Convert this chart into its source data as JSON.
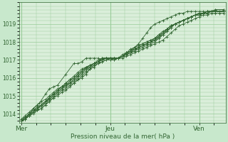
{
  "xlabel": "Pression niveau de la mer( hPa )",
  "bg_color": "#c8e8cc",
  "plot_bg_color": "#daeeda",
  "line_color": "#336633",
  "grid_color": "#99cc99",
  "tick_label_color": "#336633",
  "ylim": [
    1013.5,
    1020.2
  ],
  "yticks": [
    1014,
    1015,
    1016,
    1017,
    1018,
    1019
  ],
  "xtick_labels": [
    "Mer",
    "Jeu",
    "Ven"
  ],
  "xtick_positions": [
    0.0,
    0.44,
    0.88
  ],
  "series": [
    {
      "x": [
        0.0,
        0.02,
        0.04,
        0.06,
        0.08,
        0.1,
        0.12,
        0.14,
        0.16,
        0.18,
        0.2,
        0.22,
        0.24,
        0.26,
        0.28,
        0.3,
        0.34,
        0.36,
        0.38,
        0.4,
        0.42,
        0.44,
        0.46,
        0.48,
        0.5,
        0.52,
        0.54,
        0.56,
        0.58,
        0.6,
        0.62,
        0.64,
        0.66,
        0.68,
        0.7,
        0.72,
        0.74,
        0.76,
        0.78,
        0.8,
        0.82,
        0.84,
        0.86,
        0.88,
        0.9,
        0.92,
        0.94,
        0.96,
        0.98,
        1.0
      ],
      "y": [
        1013.6,
        1013.7,
        1013.9,
        1014.1,
        1014.3,
        1014.5,
        1014.6,
        1014.9,
        1015.1,
        1015.3,
        1015.5,
        1015.7,
        1015.9,
        1016.0,
        1016.2,
        1016.4,
        1016.7,
        1016.8,
        1016.9,
        1017.0,
        1017.1,
        1017.1,
        1017.1,
        1017.1,
        1017.1,
        1017.2,
        1017.3,
        1017.4,
        1017.5,
        1017.6,
        1017.7,
        1017.8,
        1017.9,
        1018.0,
        1018.1,
        1018.3,
        1018.5,
        1018.7,
        1018.9,
        1019.0,
        1019.1,
        1019.2,
        1019.3,
        1019.4,
        1019.5,
        1019.5,
        1019.6,
        1019.6,
        1019.6,
        1019.6
      ]
    },
    {
      "x": [
        0.0,
        0.02,
        0.04,
        0.06,
        0.08,
        0.1,
        0.12,
        0.14,
        0.16,
        0.18,
        0.2,
        0.22,
        0.24,
        0.26,
        0.28,
        0.3,
        0.32,
        0.34,
        0.36,
        0.38,
        0.4,
        0.42,
        0.44,
        0.46,
        0.48,
        0.5,
        0.52,
        0.54,
        0.56,
        0.58,
        0.6,
        0.62,
        0.64,
        0.66,
        0.68,
        0.7,
        0.72,
        0.74,
        0.76,
        0.78,
        0.8,
        0.82,
        0.84,
        0.86,
        0.88,
        0.9,
        0.92,
        0.94,
        0.96,
        1.0
      ],
      "y": [
        1013.6,
        1013.8,
        1014.0,
        1014.1,
        1014.3,
        1014.5,
        1014.7,
        1014.9,
        1015.1,
        1015.3,
        1015.5,
        1015.6,
        1015.7,
        1015.9,
        1016.1,
        1016.3,
        1016.5,
        1016.7,
        1016.8,
        1016.9,
        1017.0,
        1017.1,
        1017.1,
        1017.1,
        1017.1,
        1017.2,
        1017.3,
        1017.4,
        1017.5,
        1017.6,
        1017.7,
        1017.8,
        1017.9,
        1018.0,
        1018.2,
        1018.4,
        1018.6,
        1018.8,
        1019.0,
        1019.1,
        1019.2,
        1019.3,
        1019.4,
        1019.5,
        1019.5,
        1019.6,
        1019.6,
        1019.7,
        1019.7,
        1019.7
      ]
    },
    {
      "x": [
        0.0,
        0.02,
        0.04,
        0.06,
        0.08,
        0.1,
        0.12,
        0.14,
        0.16,
        0.18,
        0.2,
        0.22,
        0.24,
        0.26,
        0.28,
        0.3,
        0.32,
        0.34,
        0.36,
        0.38,
        0.4,
        0.42,
        0.44,
        0.46,
        0.48,
        0.5,
        0.52,
        0.54,
        0.56,
        0.58,
        0.6,
        0.62,
        0.64,
        0.66,
        0.68,
        0.7,
        0.72,
        0.74,
        0.76,
        0.78,
        0.8,
        0.82,
        0.84,
        0.86,
        0.88,
        0.9,
        0.92,
        0.94,
        0.96,
        1.0
      ],
      "y": [
        1013.7,
        1013.8,
        1014.0,
        1014.2,
        1014.3,
        1014.4,
        1014.6,
        1014.8,
        1015.0,
        1015.2,
        1015.4,
        1015.5,
        1015.7,
        1015.9,
        1016.1,
        1016.3,
        1016.5,
        1016.6,
        1016.7,
        1016.9,
        1017.0,
        1017.1,
        1017.1,
        1017.1,
        1017.1,
        1017.2,
        1017.4,
        1017.5,
        1017.6,
        1017.7,
        1017.8,
        1017.9,
        1018.0,
        1018.2,
        1018.3,
        1018.5,
        1018.7,
        1018.9,
        1019.0,
        1019.1,
        1019.2,
        1019.3,
        1019.4,
        1019.5,
        1019.6,
        1019.6,
        1019.7,
        1019.7,
        1019.7,
        1019.7
      ]
    },
    {
      "x": [
        0.0,
        0.02,
        0.04,
        0.06,
        0.08,
        0.1,
        0.12,
        0.14,
        0.16,
        0.18,
        0.2,
        0.22,
        0.24,
        0.26,
        0.28,
        0.3,
        0.32,
        0.34,
        0.36,
        0.38,
        0.4,
        0.42,
        0.44,
        0.46,
        0.48,
        0.5,
        0.52,
        0.54,
        0.56,
        0.58,
        0.6,
        0.62,
        0.64,
        0.66,
        0.68,
        0.7,
        0.72,
        0.74,
        0.76,
        0.78,
        0.8,
        0.82,
        0.84,
        0.86,
        0.88,
        0.9,
        0.92,
        0.94,
        0.96,
        1.0
      ],
      "y": [
        1013.6,
        1013.7,
        1013.9,
        1014.0,
        1014.2,
        1014.3,
        1014.5,
        1014.7,
        1014.9,
        1015.1,
        1015.3,
        1015.4,
        1015.6,
        1015.7,
        1015.9,
        1016.0,
        1016.2,
        1016.5,
        1016.7,
        1016.8,
        1016.9,
        1017.0,
        1017.0,
        1017.1,
        1017.1,
        1017.2,
        1017.3,
        1017.4,
        1017.6,
        1017.7,
        1017.8,
        1017.9,
        1018.0,
        1018.1,
        1018.3,
        1018.4,
        1018.6,
        1018.8,
        1019.0,
        1019.1,
        1019.2,
        1019.3,
        1019.4,
        1019.5,
        1019.5,
        1019.6,
        1019.6,
        1019.7,
        1019.7,
        1019.7
      ]
    },
    {
      "x": [
        0.0,
        0.02,
        0.04,
        0.06,
        0.08,
        0.1,
        0.12,
        0.14,
        0.16,
        0.18,
        0.2,
        0.22,
        0.24,
        0.26,
        0.28,
        0.3,
        0.32,
        0.34,
        0.36,
        0.38,
        0.4,
        0.42,
        0.44,
        0.46,
        0.48,
        0.5,
        0.52,
        0.54,
        0.56,
        0.58,
        0.6,
        0.62,
        0.64,
        0.66,
        0.68,
        0.7,
        0.72,
        0.74,
        0.76,
        0.78,
        0.8,
        0.82,
        0.84,
        0.86,
        0.88,
        0.9,
        0.92,
        0.94,
        0.96,
        1.0
      ],
      "y": [
        1013.6,
        1013.7,
        1013.9,
        1014.1,
        1014.2,
        1014.3,
        1014.5,
        1014.7,
        1014.9,
        1015.0,
        1015.2,
        1015.3,
        1015.5,
        1015.7,
        1015.9,
        1016.1,
        1016.3,
        1016.5,
        1016.6,
        1016.8,
        1016.9,
        1017.0,
        1017.1,
        1017.1,
        1017.1,
        1017.2,
        1017.3,
        1017.4,
        1017.5,
        1017.7,
        1017.8,
        1017.9,
        1018.0,
        1018.1,
        1018.2,
        1018.4,
        1018.6,
        1018.8,
        1019.0,
        1019.1,
        1019.2,
        1019.3,
        1019.4,
        1019.5,
        1019.5,
        1019.6,
        1019.6,
        1019.7,
        1019.7,
        1019.7
      ]
    },
    {
      "x": [
        0.0,
        0.02,
        0.04,
        0.06,
        0.08,
        0.1,
        0.12,
        0.14,
        0.16,
        0.18,
        0.2,
        0.22,
        0.24,
        0.26,
        0.28,
        0.3,
        0.32,
        0.34,
        0.36,
        0.38,
        0.4,
        0.42,
        0.44,
        0.46,
        0.48,
        0.5,
        0.52,
        0.54,
        0.56,
        0.58,
        0.6,
        0.62,
        0.64,
        0.66,
        0.68,
        0.7,
        0.72,
        0.74,
        0.76,
        0.78,
        0.8,
        0.82,
        0.84,
        0.86,
        0.88,
        0.9,
        0.92,
        0.94,
        0.96,
        1.0
      ],
      "y": [
        1013.6,
        1013.8,
        1014.0,
        1014.2,
        1014.4,
        1014.5,
        1014.7,
        1014.9,
        1015.1,
        1015.3,
        1015.5,
        1015.6,
        1015.8,
        1016.0,
        1016.2,
        1016.4,
        1016.6,
        1016.7,
        1016.8,
        1017.0,
        1017.1,
        1017.1,
        1017.1,
        1017.1,
        1017.1,
        1017.3,
        1017.4,
        1017.5,
        1017.7,
        1017.8,
        1017.9,
        1018.0,
        1018.1,
        1018.2,
        1018.4,
        1018.6,
        1018.7,
        1018.9,
        1019.0,
        1019.1,
        1019.2,
        1019.3,
        1019.4,
        1019.5,
        1019.6,
        1019.6,
        1019.7,
        1019.7,
        1019.8,
        1019.8
      ]
    },
    {
      "x": [
        0.0,
        0.02,
        0.04,
        0.06,
        0.08,
        0.1,
        0.12,
        0.14,
        0.16,
        0.18,
        0.2,
        0.22,
        0.24,
        0.26,
        0.28,
        0.3,
        0.32,
        0.34,
        0.36,
        0.38,
        0.4,
        0.42,
        0.44,
        0.46,
        0.48,
        0.5,
        0.52,
        0.54,
        0.56,
        0.58,
        0.6,
        0.62,
        0.64,
        0.66,
        0.68,
        0.7,
        0.72,
        0.74,
        0.76,
        0.78,
        0.8,
        0.82,
        0.84,
        0.86,
        0.88,
        0.9,
        0.92,
        0.94,
        0.96,
        1.0
      ],
      "y": [
        1013.6,
        1013.7,
        1013.9,
        1014.1,
        1014.3,
        1014.5,
        1014.7,
        1014.8,
        1015.0,
        1015.2,
        1015.4,
        1015.6,
        1015.7,
        1015.8,
        1016.0,
        1016.2,
        1016.4,
        1016.6,
        1016.8,
        1016.9,
        1017.1,
        1017.1,
        1017.0,
        1017.0,
        1017.1,
        1017.2,
        1017.4,
        1017.5,
        1017.6,
        1017.7,
        1017.8,
        1017.9,
        1018.0,
        1018.1,
        1018.3,
        1018.5,
        1018.7,
        1018.9,
        1019.0,
        1019.1,
        1019.2,
        1019.3,
        1019.4,
        1019.5,
        1019.6,
        1019.6,
        1019.7,
        1019.7,
        1019.7,
        1019.7
      ]
    },
    {
      "x": [
        0.0,
        0.02,
        0.04,
        0.06,
        0.08,
        0.1,
        0.12,
        0.14,
        0.16,
        0.18,
        0.2,
        0.22,
        0.24,
        0.26,
        0.28,
        0.3,
        0.32,
        0.34,
        0.36,
        0.38,
        0.4,
        0.42,
        0.44,
        0.46,
        0.48,
        0.5,
        0.52,
        0.54,
        0.56,
        0.58,
        0.6,
        0.62,
        0.64,
        0.66,
        0.68,
        0.7,
        0.72,
        0.74,
        0.76,
        0.78,
        0.8,
        0.82,
        0.84,
        0.86,
        0.88,
        0.9,
        0.92,
        0.94,
        0.96,
        1.0
      ],
      "y": [
        1013.7,
        1013.9,
        1014.1,
        1014.3,
        1014.5,
        1014.7,
        1014.8,
        1015.0,
        1015.2,
        1015.4,
        1015.5,
        1015.7,
        1015.9,
        1016.1,
        1016.3,
        1016.5,
        1016.6,
        1016.7,
        1016.8,
        1016.9,
        1017.1,
        1017.1,
        1017.1,
        1017.1,
        1017.1,
        1017.2,
        1017.4,
        1017.6,
        1017.7,
        1017.8,
        1017.9,
        1018.0,
        1018.1,
        1018.2,
        1018.4,
        1018.5,
        1018.7,
        1018.9,
        1019.0,
        1019.1,
        1019.2,
        1019.3,
        1019.4,
        1019.5,
        1019.6,
        1019.6,
        1019.7,
        1019.7,
        1019.8,
        1019.8
      ]
    }
  ],
  "spiky_series": [
    {
      "x": [
        0.0,
        0.02,
        0.06,
        0.09,
        0.12,
        0.14,
        0.16,
        0.18,
        0.22,
        0.26,
        0.28,
        0.3,
        0.32,
        0.34,
        0.36,
        0.38,
        0.4,
        0.42,
        0.44,
        0.46,
        0.48,
        0.5,
        0.52,
        0.54,
        0.56,
        0.58,
        0.6,
        0.62,
        0.64,
        0.66,
        0.68,
        0.7,
        0.72,
        0.74,
        0.76,
        0.78,
        0.8,
        0.82,
        0.84,
        0.86,
        0.88,
        0.9,
        0.92,
        0.94,
        0.96,
        0.98,
        1.0
      ],
      "y": [
        1013.6,
        1013.7,
        1014.3,
        1014.6,
        1015.1,
        1015.4,
        1015.5,
        1015.6,
        1016.2,
        1016.8,
        1016.8,
        1016.9,
        1017.1,
        1017.1,
        1017.1,
        1017.1,
        1017.0,
        1017.1,
        1017.1,
        1017.0,
        1017.1,
        1017.2,
        1017.3,
        1017.5,
        1017.7,
        1017.9,
        1018.2,
        1018.5,
        1018.8,
        1019.0,
        1019.1,
        1019.2,
        1019.3,
        1019.4,
        1019.5,
        1019.6,
        1019.6,
        1019.7,
        1019.7,
        1019.7,
        1019.7,
        1019.7,
        1019.7,
        1019.7,
        1019.7,
        1019.7,
        1019.7
      ]
    }
  ]
}
